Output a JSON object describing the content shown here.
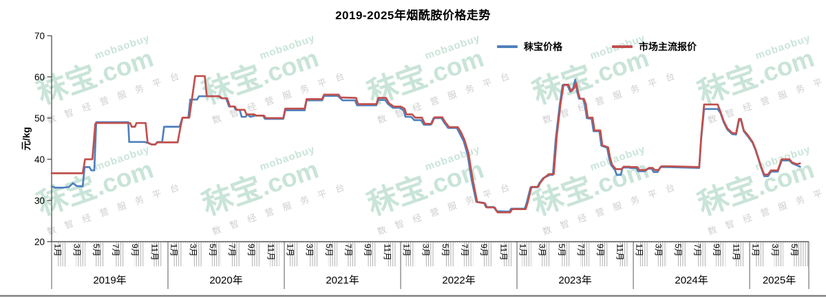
{
  "title": "2019-2025年烟酰胺价格走势",
  "legend": [
    {
      "label": "秣宝价格",
      "color": "#4F81BD"
    },
    {
      "label": "市场主流报价",
      "color": "#C0504D"
    }
  ],
  "y_axis": {
    "label": "元/kg",
    "ticks": [
      70,
      60,
      50,
      40,
      30,
      20
    ]
  },
  "x_axis": {
    "years": [
      {
        "label": "2019年",
        "months": 12,
        "month_labels": [
          "1月",
          "3月",
          "5月",
          "7月",
          "9月",
          "11月"
        ]
      },
      {
        "label": "2020年",
        "months": 12,
        "month_labels": [
          "1月",
          "3月",
          "5月",
          "7月",
          "9月",
          "11月"
        ]
      },
      {
        "label": "2021年",
        "months": 12,
        "month_labels": [
          "1月",
          "3月",
          "5月",
          "7月",
          "9月",
          "11月"
        ]
      },
      {
        "label": "2022年",
        "months": 12,
        "month_labels": [
          "1月",
          "3月",
          "5月",
          "7月",
          "9月",
          "11月"
        ]
      },
      {
        "label": "2023年",
        "months": 12,
        "month_labels": [
          "1月",
          "3月",
          "5月",
          "7月",
          "9月",
          "11月"
        ]
      },
      {
        "label": "2024年",
        "months": 12,
        "month_labels": [
          "1月",
          "3月",
          "5月",
          "7月",
          "9月",
          "11月"
        ]
      },
      {
        "label": "2025年",
        "months": 6.1,
        "month_labels": [
          "1月",
          "3月",
          "5月"
        ]
      }
    ]
  },
  "watermark": {
    "latin": "mobaobuy",
    "brand": "秣宝",
    "com": ".com",
    "slogan": "数智经营服务平台"
  },
  "chart_data": {
    "type": "line",
    "title": "2019-2025年烟酰胺价格走势",
    "ylabel": "元/kg",
    "ylim": [
      20,
      70
    ],
    "x_unit": "months since 2019-01 (fractional)",
    "x_range": [
      0,
      78.1
    ],
    "grid": false,
    "legend_position": "top",
    "series": [
      {
        "name": "秣宝价格",
        "color": "#4F81BD",
        "points": [
          [
            0,
            33.4
          ],
          [
            0.4,
            33.1
          ],
          [
            1.2,
            33.1
          ],
          [
            1.8,
            33.3
          ],
          [
            2.2,
            34.2
          ],
          [
            2.6,
            33.5
          ],
          [
            3.2,
            33.4
          ],
          [
            3.4,
            38.1
          ],
          [
            3.9,
            38.1
          ],
          [
            4.1,
            37.3
          ],
          [
            4.4,
            37.3
          ],
          [
            4.6,
            49.0
          ],
          [
            7.9,
            49.0
          ],
          [
            8.0,
            44.2
          ],
          [
            9.6,
            44.2
          ],
          [
            10.0,
            43.9
          ],
          [
            10.3,
            43.6
          ],
          [
            10.7,
            43.6
          ],
          [
            10.9,
            44.2
          ],
          [
            11.4,
            44.2
          ],
          [
            11.6,
            47.9
          ],
          [
            13.2,
            47.9
          ],
          [
            13.5,
            50.1
          ],
          [
            14.1,
            50.1
          ],
          [
            14.3,
            54.5
          ],
          [
            15.0,
            54.5
          ],
          [
            15.2,
            55.3
          ],
          [
            17.2,
            55.3
          ],
          [
            17.5,
            54.8
          ],
          [
            18.0,
            54.8
          ],
          [
            18.3,
            52.8
          ],
          [
            18.8,
            52.8
          ],
          [
            19.0,
            52.0
          ],
          [
            19.4,
            52.0
          ],
          [
            19.6,
            50.3
          ],
          [
            20.0,
            50.3
          ],
          [
            20.2,
            50.9
          ],
          [
            20.5,
            50.3
          ],
          [
            21.0,
            50.6
          ],
          [
            21.8,
            50.6
          ],
          [
            22.0,
            49.8
          ],
          [
            23.9,
            49.8
          ],
          [
            24.1,
            51.9
          ],
          [
            26.1,
            51.9
          ],
          [
            26.3,
            54.3
          ],
          [
            27.9,
            54.3
          ],
          [
            28.1,
            55.4
          ],
          [
            29.5,
            55.4
          ],
          [
            29.7,
            55.0
          ],
          [
            30.0,
            54.3
          ],
          [
            31.3,
            54.3
          ],
          [
            31.5,
            53.1
          ],
          [
            33.5,
            53.1
          ],
          [
            33.7,
            54.4
          ],
          [
            34.4,
            54.4
          ],
          [
            34.7,
            53.4
          ],
          [
            35.2,
            52.5
          ],
          [
            35.9,
            52.5
          ],
          [
            36.3,
            51.9
          ],
          [
            36.5,
            50.3
          ],
          [
            37.1,
            50.3
          ],
          [
            37.4,
            49.5
          ],
          [
            38.1,
            49.5
          ],
          [
            38.4,
            48.4
          ],
          [
            39.1,
            48.4
          ],
          [
            39.4,
            50.0
          ],
          [
            40.2,
            50.0
          ],
          [
            40.5,
            48.9
          ],
          [
            40.9,
            47.6
          ],
          [
            41.8,
            47.6
          ],
          [
            42.1,
            46.2
          ],
          [
            42.5,
            44.4
          ],
          [
            42.9,
            41.2
          ],
          [
            43.3,
            35.2
          ],
          [
            43.8,
            29.7
          ],
          [
            44.6,
            29.4
          ],
          [
            44.8,
            28.4
          ],
          [
            45.6,
            28.4
          ],
          [
            45.9,
            27.4
          ],
          [
            47.2,
            27.3
          ],
          [
            47.4,
            28.0
          ],
          [
            48.8,
            28.0
          ],
          [
            49.0,
            29.4
          ],
          [
            49.4,
            33.2
          ],
          [
            50.1,
            33.2
          ],
          [
            50.3,
            34.2
          ],
          [
            50.7,
            35.4
          ],
          [
            51.4,
            36.2
          ],
          [
            51.7,
            36.2
          ],
          [
            52.0,
            45.0
          ],
          [
            52.4,
            53.0
          ],
          [
            52.7,
            58.0
          ],
          [
            53.2,
            58.0
          ],
          [
            53.5,
            56.4
          ],
          [
            53.8,
            57.3
          ],
          [
            54.0,
            59.3
          ],
          [
            54.2,
            56.4
          ],
          [
            54.4,
            54.7
          ],
          [
            54.8,
            54.7
          ],
          [
            55.0,
            53.3
          ],
          [
            55.2,
            50.0
          ],
          [
            55.7,
            49.8
          ],
          [
            55.9,
            46.8
          ],
          [
            56.5,
            46.8
          ],
          [
            56.7,
            43.3
          ],
          [
            57.3,
            42.8
          ],
          [
            57.5,
            40.3
          ],
          [
            57.7,
            38.6
          ],
          [
            58.1,
            37.4
          ],
          [
            58.3,
            36.2
          ],
          [
            58.7,
            36.2
          ],
          [
            58.9,
            38.0
          ],
          [
            59.5,
            38.0
          ],
          [
            59.7,
            37.9
          ],
          [
            60.3,
            37.9
          ],
          [
            60.5,
            37.1
          ],
          [
            61.2,
            37.1
          ],
          [
            61.5,
            37.7
          ],
          [
            61.9,
            37.7
          ],
          [
            62.1,
            36.9
          ],
          [
            62.5,
            36.9
          ],
          [
            62.8,
            38.1
          ],
          [
            63.6,
            38.1
          ],
          [
            66.8,
            37.9
          ],
          [
            67.0,
            45.0
          ],
          [
            67.3,
            52.2
          ],
          [
            68.7,
            52.2
          ],
          [
            69.0,
            51.2
          ],
          [
            69.3,
            49.1
          ],
          [
            69.7,
            47.2
          ],
          [
            70.2,
            46.1
          ],
          [
            70.6,
            46.0
          ],
          [
            70.9,
            49.5
          ],
          [
            71.1,
            49.5
          ],
          [
            71.4,
            46.8
          ],
          [
            71.8,
            45.6
          ],
          [
            72.3,
            44.0
          ],
          [
            72.6,
            42.3
          ],
          [
            73.2,
            37.9
          ],
          [
            73.5,
            35.9
          ],
          [
            73.9,
            35.9
          ],
          [
            74.2,
            37.0
          ],
          [
            74.9,
            37.0
          ],
          [
            75.3,
            39.7
          ],
          [
            76.1,
            39.7
          ],
          [
            76.4,
            39.0
          ],
          [
            76.9,
            38.5
          ],
          [
            77.2,
            38.2
          ]
        ]
      },
      {
        "name": "市场主流报价",
        "color": "#C0504D",
        "points": [
          [
            0,
            36.6
          ],
          [
            3.2,
            36.6
          ],
          [
            3.45,
            40.0
          ],
          [
            4.2,
            40.0
          ],
          [
            4.5,
            48.6
          ],
          [
            4.7,
            48.8
          ],
          [
            8.1,
            48.8
          ],
          [
            8.25,
            47.9
          ],
          [
            8.6,
            47.9
          ],
          [
            8.75,
            48.8
          ],
          [
            9.7,
            48.8
          ],
          [
            9.9,
            44.1
          ],
          [
            10.3,
            43.6
          ],
          [
            10.7,
            43.6
          ],
          [
            10.9,
            44.1
          ],
          [
            13.0,
            44.1
          ],
          [
            13.3,
            47.9
          ],
          [
            13.5,
            50.1
          ],
          [
            14.2,
            50.1
          ],
          [
            14.5,
            55.0
          ],
          [
            14.8,
            60.2
          ],
          [
            15.8,
            60.2
          ],
          [
            16.0,
            55.3
          ],
          [
            17.3,
            55.3
          ],
          [
            17.6,
            54.8
          ],
          [
            18.1,
            54.8
          ],
          [
            18.4,
            52.8
          ],
          [
            18.9,
            52.8
          ],
          [
            19.1,
            52.0
          ],
          [
            19.9,
            52.0
          ],
          [
            20.1,
            50.9
          ],
          [
            20.9,
            50.9
          ],
          [
            21.1,
            50.6
          ],
          [
            21.9,
            50.6
          ],
          [
            22.1,
            50.0
          ],
          [
            23.9,
            50.0
          ],
          [
            24.1,
            52.3
          ],
          [
            26.1,
            52.3
          ],
          [
            26.3,
            54.6
          ],
          [
            27.9,
            54.6
          ],
          [
            28.1,
            55.7
          ],
          [
            29.6,
            55.7
          ],
          [
            29.8,
            55.0
          ],
          [
            31.4,
            54.9
          ],
          [
            31.6,
            53.4
          ],
          [
            33.5,
            53.4
          ],
          [
            33.7,
            54.9
          ],
          [
            34.5,
            54.9
          ],
          [
            34.8,
            53.6
          ],
          [
            35.3,
            52.8
          ],
          [
            36.0,
            52.8
          ],
          [
            36.4,
            52.3
          ],
          [
            36.6,
            50.9
          ],
          [
            37.2,
            50.9
          ],
          [
            37.5,
            50.1
          ],
          [
            38.2,
            50.1
          ],
          [
            38.5,
            48.6
          ],
          [
            39.2,
            48.6
          ],
          [
            39.5,
            50.2
          ],
          [
            40.3,
            50.2
          ],
          [
            40.6,
            49.0
          ],
          [
            41.0,
            47.8
          ],
          [
            41.9,
            47.8
          ],
          [
            42.2,
            46.7
          ],
          [
            42.6,
            44.6
          ],
          [
            43.0,
            41.5
          ],
          [
            43.4,
            35.5
          ],
          [
            43.9,
            29.6
          ],
          [
            44.7,
            29.3
          ],
          [
            44.9,
            28.3
          ],
          [
            45.7,
            28.3
          ],
          [
            46.0,
            27.1
          ],
          [
            47.3,
            27.1
          ],
          [
            47.5,
            27.9
          ],
          [
            48.9,
            27.9
          ],
          [
            49.1,
            29.4
          ],
          [
            49.5,
            33.3
          ],
          [
            50.2,
            33.3
          ],
          [
            50.4,
            34.3
          ],
          [
            50.8,
            35.5
          ],
          [
            51.3,
            36.4
          ],
          [
            51.8,
            36.4
          ],
          [
            52.1,
            45.5
          ],
          [
            52.5,
            53.5
          ],
          [
            52.8,
            58.1
          ],
          [
            53.3,
            58.1
          ],
          [
            53.6,
            56.5
          ],
          [
            53.9,
            57.3
          ],
          [
            54.1,
            58.6
          ],
          [
            54.3,
            56.3
          ],
          [
            54.5,
            54.7
          ],
          [
            54.9,
            54.7
          ],
          [
            55.1,
            53.4
          ],
          [
            55.3,
            50.1
          ],
          [
            55.8,
            50.1
          ],
          [
            56.0,
            47.0
          ],
          [
            56.6,
            47.0
          ],
          [
            56.8,
            43.4
          ],
          [
            57.4,
            42.9
          ],
          [
            57.6,
            40.4
          ],
          [
            57.8,
            38.7
          ],
          [
            58.2,
            37.6
          ],
          [
            58.8,
            37.6
          ],
          [
            59.0,
            38.2
          ],
          [
            59.6,
            38.2
          ],
          [
            59.8,
            38.1
          ],
          [
            60.4,
            38.1
          ],
          [
            60.6,
            37.4
          ],
          [
            61.3,
            37.4
          ],
          [
            61.6,
            37.9
          ],
          [
            62.0,
            37.9
          ],
          [
            62.2,
            37.4
          ],
          [
            62.6,
            37.4
          ],
          [
            62.9,
            38.3
          ],
          [
            63.7,
            38.3
          ],
          [
            66.8,
            38.1
          ],
          [
            67.0,
            45.5
          ],
          [
            67.3,
            53.3
          ],
          [
            68.7,
            53.3
          ],
          [
            69.0,
            51.5
          ],
          [
            69.3,
            49.4
          ],
          [
            69.7,
            47.5
          ],
          [
            70.2,
            46.4
          ],
          [
            70.6,
            46.3
          ],
          [
            70.9,
            49.8
          ],
          [
            71.1,
            49.8
          ],
          [
            71.4,
            47.0
          ],
          [
            71.8,
            45.9
          ],
          [
            72.3,
            44.2
          ],
          [
            72.6,
            42.5
          ],
          [
            73.2,
            38.1
          ],
          [
            73.5,
            36.3
          ],
          [
            73.9,
            36.3
          ],
          [
            74.2,
            37.3
          ],
          [
            74.9,
            37.3
          ],
          [
            75.3,
            40.0
          ],
          [
            76.1,
            40.0
          ],
          [
            76.4,
            39.2
          ],
          [
            76.9,
            38.8
          ],
          [
            77.2,
            39.0
          ]
        ]
      }
    ]
  }
}
